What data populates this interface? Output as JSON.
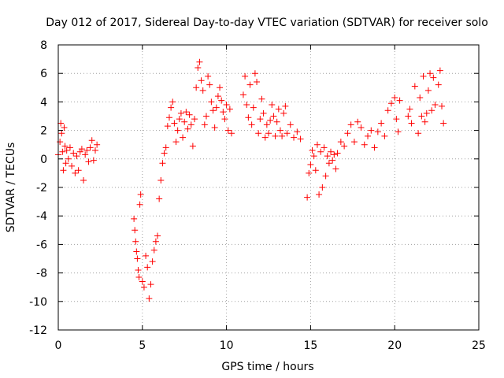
{
  "chart_data": {
    "type": "scatter",
    "title": "Day 012 of 2017, Sidereal Day-to-day VTEC variation (SDTVAR) for receiver solo",
    "xlabel": "GPS time / hours",
    "ylabel": "SDTVAR / TECUs",
    "xlim": [
      0,
      25
    ],
    "ylim": [
      -12,
      8
    ],
    "xticks": [
      0,
      5,
      10,
      15,
      20,
      25
    ],
    "yticks": [
      -12,
      -10,
      -8,
      -6,
      -4,
      -2,
      0,
      2,
      4,
      6,
      8
    ],
    "grid": true,
    "marker": "+",
    "color": "#ff0000",
    "series": [
      {
        "name": "SDTVAR",
        "x": [
          0.0,
          0.1,
          0.15,
          0.2,
          0.25,
          0.3,
          0.35,
          0.4,
          0.45,
          0.5,
          0.6,
          0.7,
          0.8,
          0.9,
          1.0,
          1.1,
          1.2,
          1.3,
          1.4,
          1.5,
          1.6,
          1.7,
          1.8,
          1.9,
          2.0,
          2.1,
          2.2,
          2.3,
          4.5,
          4.55,
          4.6,
          4.65,
          4.7,
          4.75,
          4.8,
          4.85,
          4.9,
          5.0,
          5.1,
          5.2,
          5.3,
          5.4,
          5.5,
          5.6,
          5.7,
          5.8,
          5.9,
          6.0,
          6.1,
          6.2,
          6.3,
          6.4,
          6.5,
          6.6,
          6.7,
          6.8,
          6.9,
          7.0,
          7.1,
          7.2,
          7.3,
          7.4,
          7.5,
          7.6,
          7.7,
          7.8,
          7.9,
          8.0,
          8.1,
          8.2,
          8.3,
          8.4,
          8.5,
          8.6,
          8.7,
          8.8,
          8.9,
          9.0,
          9.1,
          9.2,
          9.3,
          9.4,
          9.5,
          9.6,
          9.7,
          9.8,
          9.9,
          10.0,
          10.1,
          10.2,
          10.3,
          11.0,
          11.1,
          11.2,
          11.3,
          11.4,
          11.5,
          11.6,
          11.7,
          11.8,
          11.9,
          12.0,
          12.1,
          12.2,
          12.3,
          12.4,
          12.5,
          12.6,
          12.7,
          12.8,
          12.9,
          13.0,
          13.1,
          13.2,
          13.3,
          13.4,
          13.5,
          13.6,
          13.8,
          14.0,
          14.2,
          14.4,
          14.8,
          14.9,
          15.0,
          15.1,
          15.2,
          15.3,
          15.4,
          15.5,
          15.6,
          15.7,
          15.8,
          15.9,
          16.0,
          16.1,
          16.2,
          16.3,
          16.4,
          16.5,
          16.6,
          16.8,
          17.0,
          17.2,
          17.4,
          17.6,
          17.8,
          18.0,
          18.2,
          18.4,
          18.6,
          18.8,
          19.0,
          19.2,
          19.4,
          19.6,
          19.8,
          20.0,
          20.1,
          20.2,
          20.3,
          20.8,
          20.9,
          21.0,
          21.2,
          21.4,
          21.5,
          21.6,
          21.7,
          21.8,
          21.9,
          22.0,
          22.1,
          22.2,
          22.3,
          22.4,
          22.6,
          22.7,
          22.8,
          22.9
        ],
        "y": [
          0.3,
          1.2,
          2.5,
          1.8,
          0.5,
          -0.8,
          2.2,
          0.9,
          -0.3,
          0.6,
          0.0,
          0.8,
          -0.5,
          0.4,
          -1.0,
          0.2,
          -0.8,
          0.5,
          0.7,
          -1.5,
          0.3,
          0.6,
          -0.2,
          0.8,
          1.3,
          -0.1,
          0.6,
          1.0,
          -4.2,
          -5.0,
          -5.8,
          -6.5,
          -7.0,
          -7.8,
          -8.3,
          -3.2,
          -2.5,
          -8.6,
          -9.0,
          -6.8,
          -7.6,
          -9.8,
          -8.8,
          -7.2,
          -6.4,
          -5.8,
          -5.4,
          -2.8,
          -1.5,
          -0.3,
          0.4,
          0.8,
          2.3,
          2.9,
          3.6,
          4.0,
          2.5,
          1.2,
          2.0,
          2.8,
          3.2,
          1.5,
          2.6,
          3.3,
          2.1,
          3.1,
          2.4,
          0.9,
          2.8,
          5.0,
          6.4,
          6.8,
          5.5,
          4.8,
          2.4,
          3.0,
          5.8,
          5.2,
          4.0,
          3.4,
          2.2,
          3.6,
          4.4,
          5.0,
          4.1,
          3.3,
          2.8,
          3.8,
          2.0,
          3.5,
          1.8,
          4.5,
          5.8,
          3.8,
          2.9,
          5.2,
          2.4,
          3.6,
          6.0,
          5.4,
          1.8,
          2.8,
          4.2,
          3.2,
          1.5,
          2.4,
          1.8,
          2.7,
          3.8,
          3.0,
          1.6,
          2.6,
          3.5,
          2.0,
          1.6,
          3.2,
          3.7,
          1.8,
          2.4,
          1.5,
          1.9,
          1.4,
          -2.7,
          -1.0,
          -0.4,
          0.6,
          0.2,
          -0.8,
          1.0,
          -2.5,
          0.5,
          -2.0,
          0.8,
          -1.2,
          0.2,
          -0.3,
          0.5,
          -0.1,
          0.3,
          -0.7,
          0.4,
          1.2,
          0.9,
          1.8,
          2.4,
          1.2,
          2.6,
          2.2,
          1.0,
          1.6,
          2.0,
          0.8,
          1.9,
          2.5,
          1.6,
          3.4,
          3.9,
          4.3,
          2.8,
          1.9,
          4.1,
          3.0,
          3.5,
          2.5,
          5.1,
          1.8,
          4.3,
          3.0,
          5.8,
          2.6,
          3.2,
          4.8,
          6.0,
          3.4,
          5.7,
          3.8,
          5.2,
          6.2,
          3.7,
          2.5
        ]
      }
    ]
  }
}
